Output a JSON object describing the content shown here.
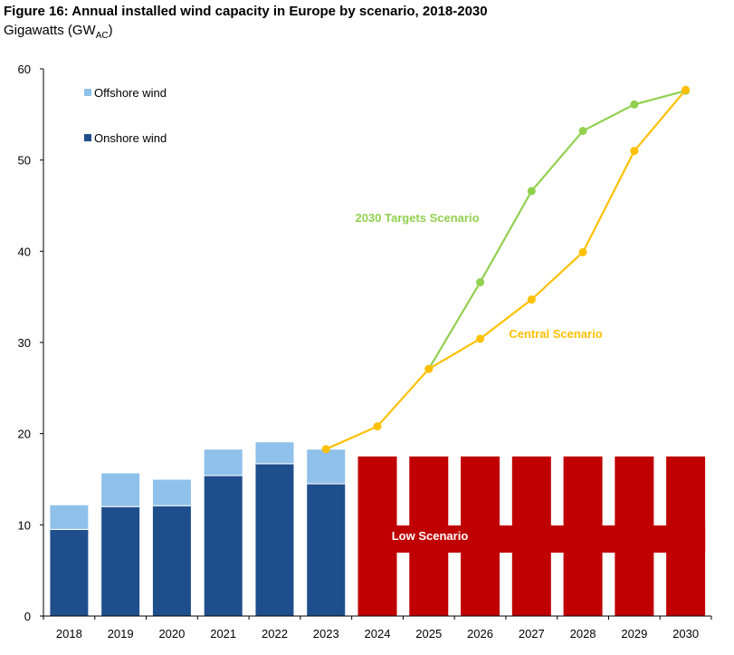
{
  "header": {
    "title": "Figure 16: Annual installed wind capacity in Europe by scenario, 2018-2030",
    "unit_main": "Gigawatts (GW",
    "unit_sub": "AC",
    "unit_close": ")"
  },
  "chart_data": {
    "type": "bar",
    "title": "Figure 16: Annual installed wind capacity in Europe by scenario, 2018-2030",
    "ylabel": "Gigawatts (GWAC)",
    "xlabel": "",
    "ylim": [
      0,
      60
    ],
    "yticks": [
      "0",
      "10",
      "20",
      "30",
      "40",
      "50",
      "60"
    ],
    "categories": [
      "2018",
      "2019",
      "2020",
      "2021",
      "2022",
      "2023",
      "2024",
      "2025",
      "2026",
      "2027",
      "2028",
      "2029",
      "2030"
    ],
    "stacked_series": [
      {
        "name": "Onshore wind",
        "color": "#1f4e8c",
        "values": [
          9.5,
          12.0,
          12.1,
          15.4,
          16.7,
          14.5,
          null,
          null,
          null,
          null,
          null,
          null,
          null
        ]
      },
      {
        "name": "Offshore wind",
        "color": "#8fc1ea",
        "values": [
          2.7,
          3.7,
          2.9,
          2.9,
          2.4,
          3.8,
          null,
          null,
          null,
          null,
          null,
          null,
          null
        ]
      }
    ],
    "low_scenario": {
      "name": "Low Scenario",
      "color": "#c00000",
      "values": [
        null,
        null,
        null,
        null,
        null,
        null,
        17.5,
        17.5,
        17.5,
        17.5,
        17.5,
        17.5,
        17.5
      ]
    },
    "line_series": [
      {
        "name": "2030 Targets Scenario",
        "color": "#92d050",
        "values": [
          null,
          null,
          null,
          null,
          null,
          null,
          null,
          27.1,
          36.6,
          46.6,
          53.2,
          56.1,
          57.6
        ]
      },
      {
        "name": "Central Scenario",
        "color": "#ffc000",
        "values": [
          null,
          null,
          null,
          null,
          null,
          18.3,
          20.8,
          27.1,
          30.4,
          34.7,
          39.9,
          51.0,
          57.7
        ]
      }
    ],
    "legend": {
      "placement": "top-left",
      "entries": [
        {
          "label": "Offshore wind",
          "color": "#8fc1ea"
        },
        {
          "label": "Onshore wind",
          "color": "#1f4e8c"
        }
      ]
    },
    "annotations": [
      {
        "text": "2030 Targets Scenario",
        "color": "#92d050"
      },
      {
        "text": "Central Scenario",
        "color": "#ffc000"
      },
      {
        "text": "Low Scenario",
        "color": "#ffffff"
      }
    ]
  }
}
